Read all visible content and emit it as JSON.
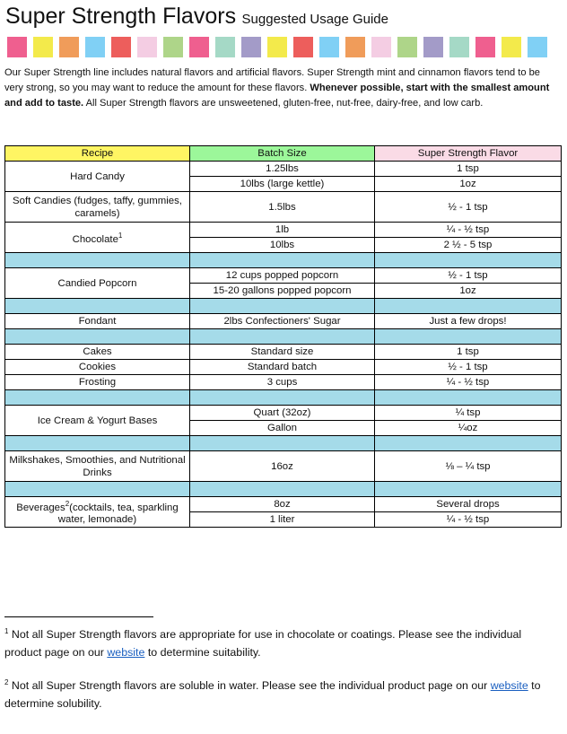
{
  "title": {
    "main": "Super Strength Flavors",
    "sub": "Suggested Usage Guide"
  },
  "swatch_colors": [
    "#ef5f8f",
    "#f3ea4b",
    "#f09c5a",
    "#80d0f5",
    "#ed5e5c",
    "#f4cde3",
    "#aed589",
    "#ef5f8f",
    "#a5d9c6",
    "#a39bc8",
    "#f3ea4b",
    "#ed5e5c",
    "#80d0f5",
    "#f09c5a",
    "#f4cde3",
    "#aed589",
    "#a39bc8",
    "#a5d9c6",
    "#ef5f8f",
    "#f3ea4b",
    "#80d0f5"
  ],
  "intro": {
    "part1": "Our Super Strength line includes natural flavors and artificial flavors. Super Strength mint and cinnamon flavors tend to be very strong, so you may want to reduce the amount for these flavors. ",
    "bold": "Whenever possible, start with the smallest amount and add to taste.",
    "part2": " All Super Strength flavors are unsweetened, gluten-free, nut-free, dairy-free, and low carb."
  },
  "table": {
    "headers": [
      "Recipe",
      "Batch Size",
      "Super Strength Flavor"
    ],
    "header_colors": [
      "#fff563",
      "#9cf79a",
      "#fadbe6"
    ],
    "spacer_color": "#a5dbe9",
    "rows": [
      {
        "recipe": "Hard Candy",
        "items": [
          {
            "batch": "1.25lbs",
            "flavor": "1 tsp"
          },
          {
            "batch": "10lbs (large kettle)",
            "flavor": "1oz"
          }
        ]
      },
      {
        "recipe": "Soft Candies (fudges, taffy, gummies, caramels)",
        "tall": true,
        "items": [
          {
            "batch": "1.5lbs",
            "flavor": "½ - 1 tsp"
          }
        ]
      },
      {
        "recipe": "Chocolate",
        "sup": "1",
        "items": [
          {
            "batch": "1lb",
            "flavor": "¼ - ½ tsp"
          },
          {
            "batch": "10lbs",
            "flavor": "2 ½ - 5 tsp"
          }
        ]
      },
      {
        "spacer": true
      },
      {
        "recipe": "Candied Popcorn",
        "items": [
          {
            "batch": "12 cups popped popcorn",
            "flavor": "½ - 1 tsp"
          },
          {
            "batch": "15-20 gallons popped popcorn",
            "flavor": "1oz"
          }
        ]
      },
      {
        "spacer": true
      },
      {
        "recipe": "Fondant",
        "items": [
          {
            "batch": "2lbs Confectioners' Sugar",
            "flavor": "Just a few drops!"
          }
        ]
      },
      {
        "spacer": true
      },
      {
        "recipe": "Cakes",
        "items": [
          {
            "batch": "Standard size",
            "flavor": "1 tsp"
          }
        ]
      },
      {
        "recipe": "Cookies",
        "items": [
          {
            "batch": "Standard batch",
            "flavor": "½ - 1 tsp"
          }
        ]
      },
      {
        "recipe": "Frosting",
        "items": [
          {
            "batch": "3 cups",
            "flavor": "¼ - ½ tsp"
          }
        ]
      },
      {
        "spacer": true
      },
      {
        "recipe": "Ice Cream & Yogurt Bases",
        "items": [
          {
            "batch": "Quart (32oz)",
            "flavor": "¼ tsp"
          },
          {
            "batch": "Gallon",
            "flavor": "¼oz"
          }
        ]
      },
      {
        "spacer": true
      },
      {
        "recipe": "Milkshakes, Smoothies, and Nutritional Drinks",
        "tall": true,
        "items": [
          {
            "batch": "16oz",
            "flavor": "⅛ – ¼ tsp"
          }
        ]
      },
      {
        "spacer": true
      },
      {
        "recipe": "Beverages",
        "sup": "2",
        "recipe_after": "(cocktails, tea, sparkling water, lemonade)",
        "items": [
          {
            "batch": "8oz",
            "flavor": "Several drops"
          },
          {
            "batch": "1 liter",
            "flavor": "¼ - ½ tsp"
          }
        ]
      }
    ]
  },
  "footnotes": [
    {
      "num": "1",
      "pre": " Not all Super Strength flavors are appropriate for use in chocolate or coatings. Please see the individual product page on our ",
      "link": "website",
      "post": " to determine suitability."
    },
    {
      "num": "2",
      "pre": " Not all Super Strength flavors are soluble in water. Please see the individual product page on our ",
      "link": "website",
      "post": " to determine solubility."
    }
  ]
}
